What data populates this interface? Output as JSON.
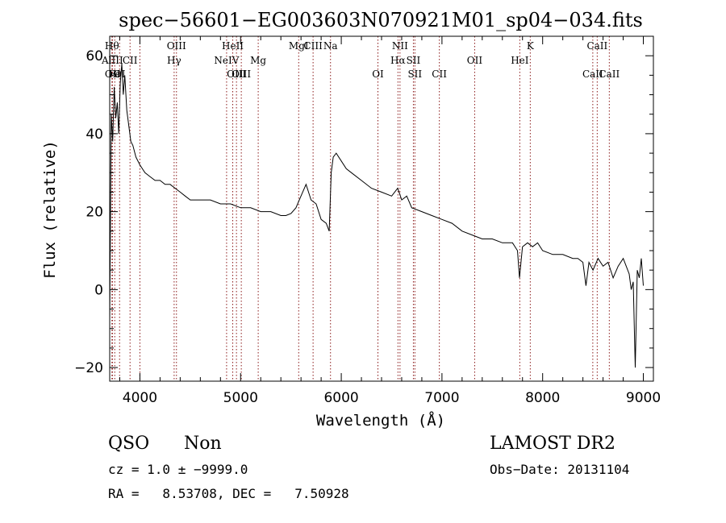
{
  "chart_data": {
    "type": "line",
    "title": "spec−56601−EG003603N070921M01_sp04−034.fits",
    "xlabel": "Wavelength (Å)",
    "ylabel": "Flux (relative)",
    "xlim": [
      3700,
      9100
    ],
    "ylim": [
      -23.5,
      65
    ],
    "xticks": [
      4000,
      5000,
      6000,
      7000,
      8000,
      9000
    ],
    "yticks": [
      -20,
      0,
      20,
      40,
      60
    ],
    "ytick_labels": [
      "−20",
      "0",
      "20",
      "40",
      "60"
    ],
    "grid": false,
    "line_color": "#000000",
    "marker_color": "#8b1a1a",
    "series": [
      {
        "x": [
          3700,
          3715,
          3730,
          3745,
          3760,
          3775,
          3790,
          3805,
          3820,
          3835,
          3850,
          3870,
          3890,
          3910,
          3930,
          3960,
          4000,
          4050,
          4100,
          4150,
          4200,
          4250,
          4300,
          4350,
          4400,
          4450,
          4500,
          4600,
          4700,
          4800,
          4900,
          5000,
          5100,
          5200,
          5300,
          5400,
          5450,
          5500,
          5550,
          5600,
          5650,
          5700,
          5750,
          5800,
          5850,
          5880,
          5900,
          5920,
          5950,
          6000,
          6050,
          6100,
          6200,
          6300,
          6400,
          6500,
          6560,
          6600,
          6650,
          6700,
          6800,
          6900,
          7000,
          7100,
          7200,
          7300,
          7400,
          7500,
          7600,
          7700,
          7750,
          7770,
          7800,
          7850,
          7900,
          7950,
          8000,
          8100,
          8200,
          8300,
          8350,
          8400,
          8430,
          8460,
          8500,
          8550,
          8600,
          8650,
          8700,
          8750,
          8800,
          8830,
          8860,
          8880,
          8900,
          8920,
          8940,
          8960,
          8980,
          9000
        ],
        "y": [
          -8,
          45,
          38,
          52,
          44,
          48,
          40,
          53,
          58,
          50,
          55,
          46,
          42,
          38,
          37,
          34,
          32,
          30,
          29,
          28,
          28,
          27,
          27,
          26,
          25,
          24,
          23,
          23,
          23,
          22,
          22,
          21,
          21,
          20,
          20,
          19,
          19,
          19.5,
          21,
          24,
          27,
          23,
          22,
          18,
          17,
          15,
          30,
          34,
          35,
          33,
          31,
          30,
          28,
          26,
          25,
          24,
          26,
          23,
          24,
          21,
          20,
          19,
          18,
          17,
          15,
          14,
          13,
          13,
          12,
          12,
          10,
          3,
          11,
          12,
          11,
          12,
          10,
          9,
          9,
          8,
          8,
          7,
          1,
          7,
          5,
          8,
          6,
          7,
          3,
          6,
          8,
          6,
          4,
          0,
          2,
          -20,
          5,
          3,
          8,
          1
        ]
      }
    ],
    "line_markers": [
      {
        "x": 3722,
        "row": 1,
        "label": "Hθ"
      },
      {
        "x": 3727,
        "row": 2,
        "label": "AlIII"
      },
      {
        "x": 3728,
        "row": 3,
        "label": "OII"
      },
      {
        "x": 3750,
        "row": 3,
        "label": "Fe"
      },
      {
        "x": 3798,
        "row": 3,
        "label": "OI"
      },
      {
        "x": 3902,
        "row": 2,
        "label": "CII"
      },
      {
        "x": 4000,
        "row": 1,
        "label": ""
      },
      {
        "x": 4340,
        "row": 2,
        "label": "Hγ"
      },
      {
        "x": 4363,
        "row": 1,
        "label": "OIII"
      },
      {
        "x": 4861,
        "row": 2,
        "label": "NeIV"
      },
      {
        "x": 4922,
        "row": 1,
        "label": "HeII"
      },
      {
        "x": 4959,
        "row": 3,
        "label": "OIII"
      },
      {
        "x": 5007,
        "row": 3,
        "label": "OIII"
      },
      {
        "x": 5175,
        "row": 2,
        "label": "Mg"
      },
      {
        "x": 5577,
        "row": 1,
        "label": "MgI"
      },
      {
        "x": 5720,
        "row": 1,
        "label": "CIII"
      },
      {
        "x": 5893,
        "row": 1,
        "label": "Na"
      },
      {
        "x": 6364,
        "row": 3,
        "label": "OI"
      },
      {
        "x": 6563,
        "row": 2,
        "label": "Hα"
      },
      {
        "x": 6583,
        "row": 1,
        "label": "NII"
      },
      {
        "x": 6716,
        "row": 2,
        "label": "SII"
      },
      {
        "x": 6731,
        "row": 3,
        "label": "SII"
      },
      {
        "x": 6974,
        "row": 3,
        "label": "CII"
      },
      {
        "x": 7325,
        "row": 2,
        "label": "OII"
      },
      {
        "x": 7773,
        "row": 2,
        "label": "HeI"
      },
      {
        "x": 7877,
        "row": 1,
        "label": "K"
      },
      {
        "x": 8498,
        "row": 3,
        "label": "CaII"
      },
      {
        "x": 8542,
        "row": 1,
        "label": "CaII"
      },
      {
        "x": 8662,
        "row": 3,
        "label": "CaII"
      }
    ]
  },
  "info": {
    "class_label": "QSO",
    "subclass_label": "Non",
    "survey_label": "LAMOST DR2",
    "cz_text": "cz = 1.0 ± −9999.0",
    "obs_date_text": "Obs−Date: 20131104",
    "radec_text": "RA =   8.53708, DEC =   7.50928"
  }
}
